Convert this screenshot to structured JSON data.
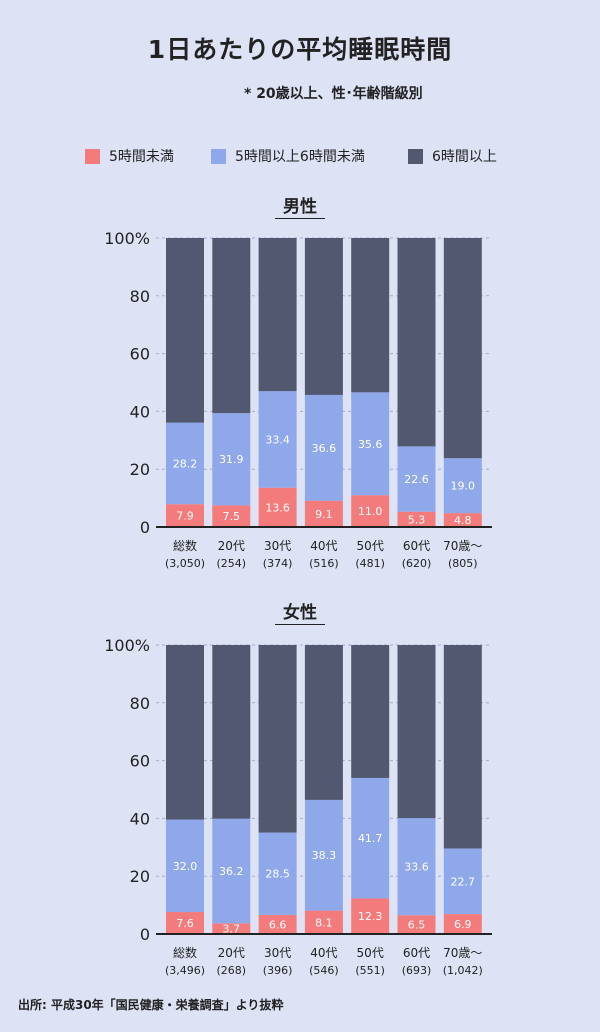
{
  "header": {
    "title": "1日あたりの平均睡眠時間",
    "subtitle": "* 20歳以上、性･年齢階級別"
  },
  "colors": {
    "lt5": "#f47b7b",
    "mid": "#8fa8ea",
    "ge6": "#52586f",
    "bar_text": "#ffffff",
    "grid": "#a5adc8",
    "background": "#dde3f5"
  },
  "legend": [
    {
      "label": "5時間未満",
      "color_key": "lt5"
    },
    {
      "label": "5時間以上6時間未満",
      "color_key": "mid"
    },
    {
      "label": "6時間以上",
      "color_key": "ge6"
    }
  ],
  "chart_data": [
    {
      "type": "bar",
      "stacked": true,
      "title": "男性",
      "ylim": [
        0,
        100
      ],
      "yticks": [
        "0",
        "20",
        "40",
        "60",
        "80",
        "100%"
      ],
      "categories": [
        "総数",
        "20代",
        "30代",
        "40代",
        "50代",
        "60代",
        "70歳～"
      ],
      "counts": [
        "(3,050)",
        "(254)",
        "(374)",
        "(516)",
        "(481)",
        "(620)",
        "(805)"
      ],
      "series": [
        {
          "name": "5時間未満",
          "values": [
            7.9,
            7.5,
            13.6,
            9.1,
            11.0,
            5.3,
            4.8
          ],
          "labels": [
            "7.9",
            "7.5",
            "13.6",
            "9.1",
            "11.0",
            "5.3",
            "4.8"
          ]
        },
        {
          "name": "5時間以上6時間未満",
          "values": [
            28.2,
            31.9,
            33.4,
            36.6,
            35.6,
            22.6,
            19.0
          ],
          "labels": [
            "28.2",
            "31.9",
            "33.4",
            "36.6",
            "35.6",
            "22.6",
            "19.0"
          ]
        },
        {
          "name": "6時間以上",
          "values": [
            63.9,
            60.6,
            53.0,
            54.3,
            53.4,
            72.1,
            76.2
          ]
        }
      ]
    },
    {
      "type": "bar",
      "stacked": true,
      "title": "女性",
      "ylim": [
        0,
        100
      ],
      "yticks": [
        "0",
        "20",
        "40",
        "60",
        "80",
        "100%"
      ],
      "categories": [
        "総数",
        "20代",
        "30代",
        "40代",
        "50代",
        "60代",
        "70歳～"
      ],
      "counts": [
        "(3,496)",
        "(268)",
        "(396)",
        "(546)",
        "(551)",
        "(693)",
        "(1,042)"
      ],
      "series": [
        {
          "name": "5時間未満",
          "values": [
            7.6,
            3.7,
            6.6,
            8.1,
            12.3,
            6.5,
            6.9
          ],
          "labels": [
            "7.6",
            "3.7",
            "6.6",
            "8.1",
            "12.3",
            "6.5",
            "6.9"
          ]
        },
        {
          "name": "5時間以上6時間未満",
          "values": [
            32.0,
            36.2,
            28.5,
            38.3,
            41.7,
            33.6,
            22.7
          ],
          "labels": [
            "32.0",
            "36.2",
            "28.5",
            "38.3",
            "41.7",
            "33.6",
            "22.7"
          ]
        },
        {
          "name": "6時間以上",
          "values": [
            60.4,
            60.1,
            64.9,
            53.6,
            46.0,
            59.9,
            70.4
          ]
        }
      ]
    }
  ],
  "source": "出所: 平成30年「国民健康・栄養調査」より抜粋"
}
